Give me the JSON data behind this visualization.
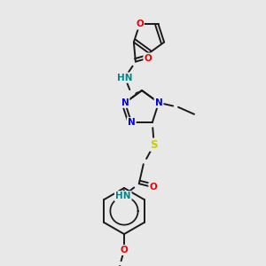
{
  "background_color": "#e8e8e8",
  "colors": {
    "C": "#1a1a1a",
    "N": "#0000ee",
    "O": "#ee0000",
    "S": "#cccc00",
    "NH": "#008888",
    "bond": "#1a1a1a"
  },
  "figsize": [
    3.0,
    3.0
  ],
  "dpi": 100
}
